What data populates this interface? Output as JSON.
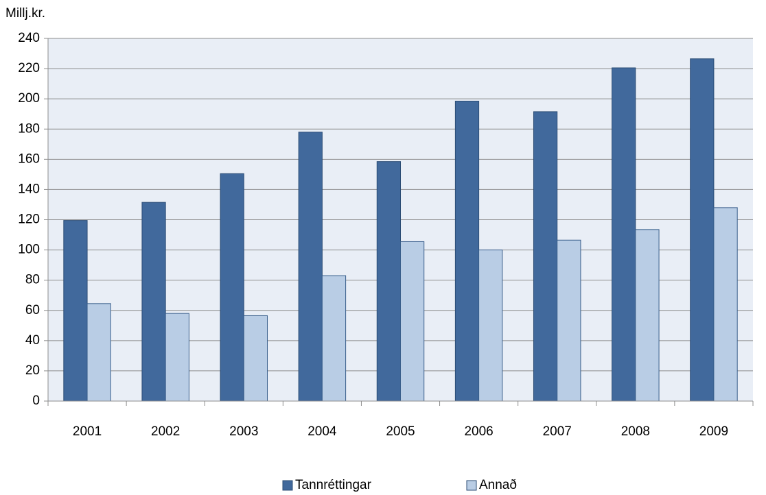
{
  "chart_data": {
    "type": "bar",
    "y_label": "Millj.kr.",
    "categories": [
      "2001",
      "2002",
      "2003",
      "2004",
      "2005",
      "2006",
      "2007",
      "2008",
      "2009"
    ],
    "series": [
      {
        "name": "Tannréttingar",
        "color": "#41699c",
        "values": [
          119.5,
          131.5,
          150.5,
          178,
          158.5,
          198.5,
          191.5,
          220.5,
          226.5
        ]
      },
      {
        "name": "Annað",
        "color": "#b9cde5",
        "values": [
          64.5,
          58,
          56.5,
          83,
          105.5,
          100,
          106.5,
          113.5,
          128
        ]
      }
    ],
    "ylim": [
      0,
      240
    ],
    "yticks": [
      0,
      20,
      40,
      60,
      80,
      100,
      120,
      140,
      160,
      180,
      200,
      220,
      240
    ],
    "grid": true,
    "legend": "bottom"
  }
}
